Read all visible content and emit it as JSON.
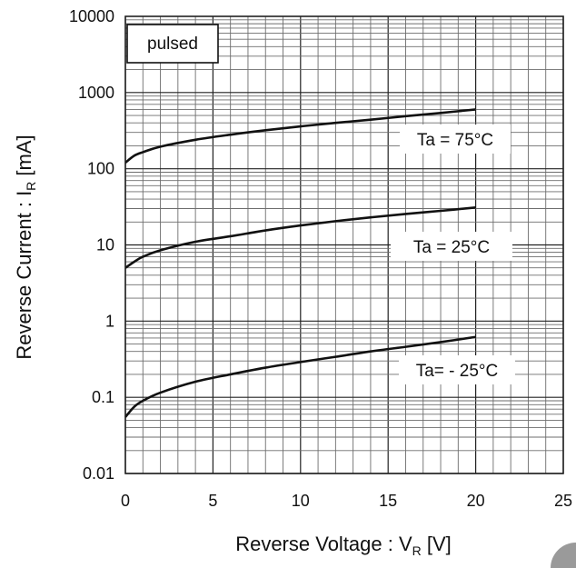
{
  "chart_data": {
    "type": "line",
    "title": "",
    "xlabel_main": "Reverse Voltage : V",
    "xlabel_sub": "R",
    "xlabel_unit": " [V]",
    "ylabel_main": "Reverse Current : I",
    "ylabel_sub": "R",
    "ylabel_unit": " [mA]",
    "xlim": [
      0,
      25
    ],
    "ylim": [
      0.01,
      10000
    ],
    "yscale": "log",
    "grid": true,
    "x_tick_labels": [
      "0",
      "5",
      "10",
      "15",
      "20",
      "25"
    ],
    "y_tick_labels": [
      "10000",
      "1000",
      "100",
      "10",
      "1",
      "0.1",
      "0.01"
    ],
    "legend_label": "pulsed",
    "legend_position": "top-left",
    "series": [
      {
        "name": "Ta = 75°C",
        "x": [
          0,
          0.5,
          1,
          2,
          4,
          6,
          8,
          10,
          12,
          14,
          16,
          18,
          20
        ],
        "y": [
          120,
          148,
          165,
          195,
          240,
          280,
          320,
          360,
          400,
          440,
          490,
          540,
          600
        ]
      },
      {
        "name": "Ta = 25°C",
        "x": [
          0,
          0.5,
          1,
          2,
          4,
          6,
          8,
          10,
          12,
          14,
          16,
          18,
          20
        ],
        "y": [
          5,
          6,
          7,
          8.5,
          11,
          13,
          15.5,
          18,
          20.5,
          23,
          25.5,
          28,
          31
        ]
      },
      {
        "name": "Ta= - 25°C",
        "x": [
          0,
          0.5,
          1,
          2,
          4,
          6,
          8,
          10,
          12,
          14,
          16,
          18,
          20
        ],
        "y": [
          0.055,
          0.075,
          0.09,
          0.115,
          0.16,
          0.2,
          0.245,
          0.29,
          0.34,
          0.4,
          0.46,
          0.53,
          0.62
        ]
      }
    ],
    "curve_labels": [
      "Ta = 75°C",
      "Ta = 25°C",
      "Ta= - 25°C"
    ]
  }
}
